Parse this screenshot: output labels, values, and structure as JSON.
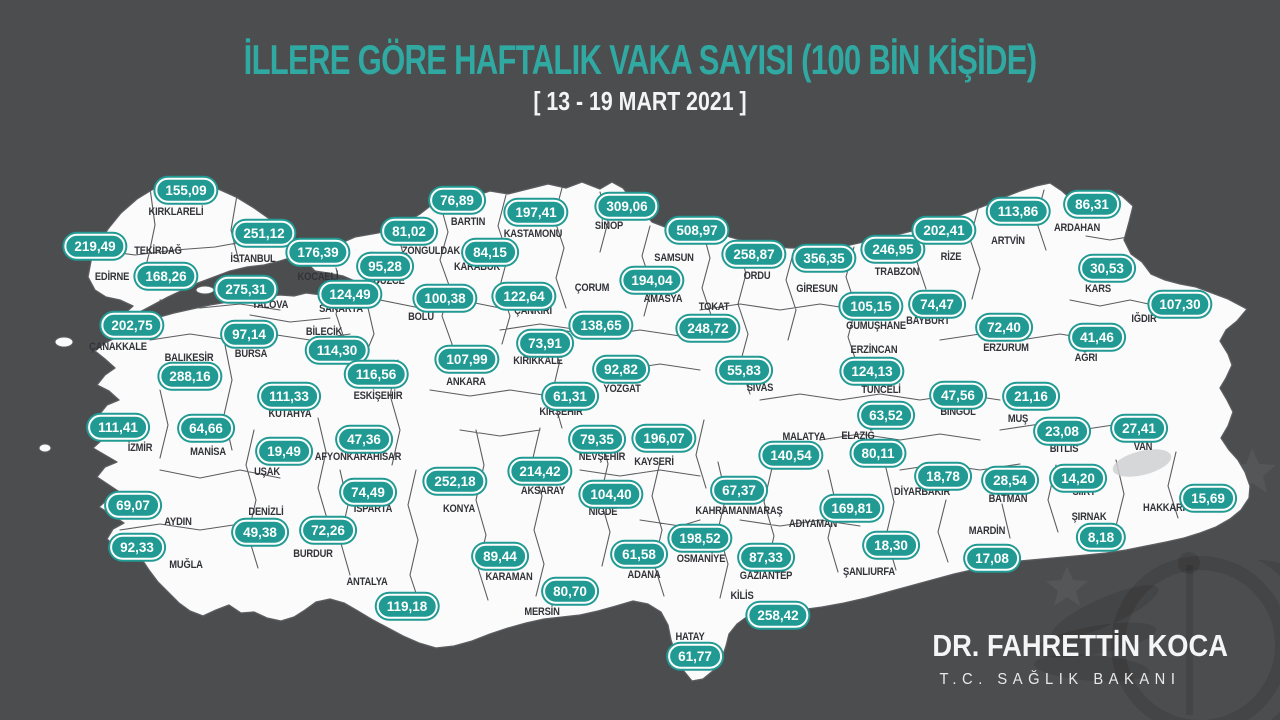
{
  "header": {
    "title": "İLLERE GÖRE HAFTALIK VAKA SAYISI (100 BİN KİŞİDE)",
    "subtitle": "[ 13 - 19 MART 2021 ]"
  },
  "signature": {
    "name": "DR. FAHRETTİN KOCA",
    "role": "T.C. SAĞLIK BAKANI"
  },
  "colors": {
    "background": "#4c4d4f",
    "land": "#fbfbfb",
    "map_border": "#5c5d60",
    "badge": "#219a94",
    "badge_text": "#ffffff",
    "label_color": "#323338",
    "title_color": "#2fa9a1",
    "subtitle_color": "#f4f4f4"
  },
  "chart_data": {
    "type": "map",
    "title": "İLLERE GÖRE HAFTALIK VAKA SAYISI (100 BİN KİŞİDE)",
    "period": "13 - 19 MART 2021",
    "unit": "haftalık vaka / 100 bin kişi",
    "region": "Türkiye (81 il)",
    "provinces": [
      {
        "name": "KIRKLARELİ",
        "value": "155,09",
        "num": 155.09,
        "badge": [
          186,
          190
        ],
        "label": [
          176,
          212
        ]
      },
      {
        "name": "EDİRNE",
        "value": "219,49",
        "num": 219.49,
        "badge": [
          95,
          246
        ],
        "label": [
          112,
          277
        ]
      },
      {
        "name": "TEKİRDAĞ",
        "value": "168,26",
        "num": 168.26,
        "badge": [
          166,
          276
        ],
        "label": [
          158,
          251
        ]
      },
      {
        "name": "İSTANBUL",
        "value": "251,12",
        "num": 251.12,
        "badge": [
          264,
          233
        ],
        "label": [
          253,
          259
        ]
      },
      {
        "name": "YALOVA",
        "value": "275,31",
        "num": 275.31,
        "badge": [
          246,
          289
        ],
        "label": [
          270,
          305
        ]
      },
      {
        "name": "KOCAELİ",
        "value": "176,39",
        "num": 176.39,
        "badge": [
          318,
          252
        ],
        "label": [
          318,
          277
        ]
      },
      {
        "name": "SAKARYA",
        "value": "124,49",
        "num": 124.49,
        "badge": [
          350,
          294
        ],
        "label": [
          341,
          309
        ]
      },
      {
        "name": "BURSA",
        "value": "97,14",
        "num": 97.14,
        "badge": [
          249,
          334
        ],
        "label": [
          251,
          354
        ]
      },
      {
        "name": "BİLECİK",
        "value": "114,30",
        "num": 114.3,
        "badge": [
          337,
          350
        ],
        "label": [
          324,
          332
        ]
      },
      {
        "name": "ÇANAKKALE",
        "value": "202,75",
        "num": 202.75,
        "badge": [
          132,
          325
        ],
        "label": [
          118,
          347
        ]
      },
      {
        "name": "BALIKESİR",
        "value": "288,16",
        "num": 288.16,
        "badge": [
          190,
          376
        ],
        "label": [
          189,
          358
        ]
      },
      {
        "name": "DÜZCE",
        "value": "95,28",
        "num": 95.28,
        "badge": [
          385,
          266
        ],
        "label": [
          389,
          281
        ]
      },
      {
        "name": "ZONGULDAK",
        "value": "81,02",
        "num": 81.02,
        "badge": [
          409,
          231
        ],
        "label": [
          431,
          251
        ]
      },
      {
        "name": "BARTIN",
        "value": "76,89",
        "num": 76.89,
        "badge": [
          457,
          200
        ],
        "label": [
          468,
          222
        ]
      },
      {
        "name": "KARABUK",
        "value": "84,15",
        "num": 84.15,
        "badge": [
          490,
          252
        ],
        "label": [
          477,
          267
        ]
      },
      {
        "name": "KASTAMONU",
        "value": "197,41",
        "num": 197.41,
        "badge": [
          536,
          212
        ],
        "label": [
          533,
          234
        ]
      },
      {
        "name": "SİNOP",
        "value": "309,06",
        "num": 309.06,
        "badge": [
          627,
          206
        ],
        "label": [
          609,
          226
        ]
      },
      {
        "name": "BOLU",
        "value": "100,38",
        "num": 100.38,
        "badge": [
          445,
          298
        ],
        "label": [
          421,
          317
        ]
      },
      {
        "name": "ÇANKIRI",
        "value": "122,64",
        "num": 122.64,
        "badge": [
          524,
          296
        ],
        "label": [
          533,
          311
        ]
      },
      {
        "name": "ÇORUM",
        "value": "138,65",
        "num": 138.65,
        "badge": [
          601,
          325
        ],
        "label": [
          592,
          288
        ]
      },
      {
        "name": "SAMSUN",
        "value": "508,97",
        "num": 508.97,
        "badge": [
          697,
          230
        ],
        "label": [
          674,
          258
        ]
      },
      {
        "name": "AMASYA",
        "value": "194,04",
        "num": 194.04,
        "badge": [
          652,
          280
        ],
        "label": [
          663,
          299
        ]
      },
      {
        "name": "TOKAT",
        "value": "248,72",
        "num": 248.72,
        "badge": [
          708,
          328
        ],
        "label": [
          714,
          307
        ]
      },
      {
        "name": "ORDU",
        "value": "258,87",
        "num": 258.87,
        "badge": [
          754,
          254
        ],
        "label": [
          757,
          276
        ]
      },
      {
        "name": "GİRESUN",
        "value": "356,35",
        "num": 356.35,
        "badge": [
          824,
          258
        ],
        "label": [
          817,
          289
        ]
      },
      {
        "name": "TRABZON",
        "value": "246,95",
        "num": 246.95,
        "badge": [
          893,
          249
        ],
        "label": [
          897,
          272
        ]
      },
      {
        "name": "RİZE",
        "value": "202,41",
        "num": 202.41,
        "badge": [
          944,
          230
        ],
        "label": [
          951,
          257
        ]
      },
      {
        "name": "ARTVİN",
        "value": "113,86",
        "num": 113.86,
        "badge": [
          1018,
          211
        ],
        "label": [
          1008,
          241
        ]
      },
      {
        "name": "ARDAHAN",
        "value": "86,31",
        "num": 86.31,
        "badge": [
          1092,
          204
        ],
        "label": [
          1077,
          228
        ]
      },
      {
        "name": "KARS",
        "value": "30,53",
        "num": 30.53,
        "badge": [
          1107,
          268
        ],
        "label": [
          1098,
          289
        ]
      },
      {
        "name": "IĞDIR",
        "value": "107,30",
        "num": 107.3,
        "badge": [
          1180,
          304
        ],
        "label": [
          1144,
          319
        ]
      },
      {
        "name": "AĞRI",
        "value": "41,46",
        "num": 41.46,
        "badge": [
          1097,
          337
        ],
        "label": [
          1086,
          358
        ]
      },
      {
        "name": "ERZURUM",
        "value": "72,40",
        "num": 72.4,
        "badge": [
          1004,
          327
        ],
        "label": [
          1006,
          348
        ]
      },
      {
        "name": "BAYBURT",
        "value": "74,47",
        "num": 74.47,
        "badge": [
          937,
          304
        ],
        "label": [
          928,
          321
        ]
      },
      {
        "name": "GÜMÜŞHANE",
        "value": "105,15",
        "num": 105.15,
        "badge": [
          871,
          306
        ],
        "label": [
          876,
          326
        ]
      },
      {
        "name": "ERZİNCAN",
        "value": "124,13",
        "num": 124.13,
        "badge": [
          872,
          371
        ],
        "label": [
          874,
          350
        ]
      },
      {
        "name": "TUNCELİ",
        "value": "63,52",
        "num": 63.52,
        "badge": [
          886,
          415
        ],
        "label": [
          881,
          390
        ]
      },
      {
        "name": "BİNGÖL",
        "value": "47,56",
        "num": 47.56,
        "badge": [
          958,
          395
        ],
        "label": [
          958,
          412
        ]
      },
      {
        "name": "MUŞ",
        "value": "21,16",
        "num": 21.16,
        "badge": [
          1031,
          396
        ],
        "label": [
          1018,
          419
        ]
      },
      {
        "name": "BİTLİS",
        "value": "23,08",
        "num": 23.08,
        "badge": [
          1062,
          431
        ],
        "label": [
          1064,
          449
        ]
      },
      {
        "name": "VAN",
        "value": "27,41",
        "num": 27.41,
        "badge": [
          1139,
          428
        ],
        "label": [
          1143,
          447
        ]
      },
      {
        "name": "SİVAS",
        "value": "55,83",
        "num": 55.83,
        "badge": [
          744,
          370
        ],
        "label": [
          760,
          388
        ]
      },
      {
        "name": "YOZGAT",
        "value": "92,82",
        "num": 92.82,
        "badge": [
          621,
          369
        ],
        "label": [
          622,
          389
        ]
      },
      {
        "name": "KIRIKKALE",
        "value": "73,91",
        "num": 73.91,
        "badge": [
          545,
          343
        ],
        "label": [
          538,
          361
        ]
      },
      {
        "name": "ANKARA",
        "value": "107,99",
        "num": 107.99,
        "badge": [
          467,
          359
        ],
        "label": [
          466,
          382
        ]
      },
      {
        "name": "ESKİŞEHİR",
        "value": "116,56",
        "num": 116.56,
        "badge": [
          376,
          374
        ],
        "label": [
          378,
          396
        ]
      },
      {
        "name": "KÜTAHYA",
        "value": "111,33",
        "num": 111.33,
        "badge": [
          289,
          396
        ],
        "label": [
          290,
          414
        ]
      },
      {
        "name": "MANİSA",
        "value": "64,66",
        "num": 64.66,
        "badge": [
          206,
          428
        ],
        "label": [
          208,
          452
        ]
      },
      {
        "name": "İZMİR",
        "value": "111,41",
        "num": 111.41,
        "badge": [
          118,
          427
        ],
        "label": [
          140,
          448
        ]
      },
      {
        "name": "UŞAK",
        "value": "19,49",
        "num": 19.49,
        "badge": [
          284,
          451
        ],
        "label": [
          267,
          472
        ]
      },
      {
        "name": "AFYONKARAHİSAR",
        "value": "47,36",
        "num": 47.36,
        "badge": [
          364,
          439
        ],
        "label": [
          358,
          457
        ]
      },
      {
        "name": "KIRŞEHİR",
        "value": "61,31",
        "num": 61.31,
        "badge": [
          570,
          396
        ],
        "label": [
          561,
          412
        ]
      },
      {
        "name": "NEVŞEHİR",
        "value": "79,35",
        "num": 79.35,
        "badge": [
          597,
          439
        ],
        "label": [
          602,
          457
        ]
      },
      {
        "name": "KAYSERİ",
        "value": "196,07",
        "num": 196.07,
        "badge": [
          664,
          438
        ],
        "label": [
          654,
          462
        ]
      },
      {
        "name": "AKSARAY",
        "value": "214,42",
        "num": 214.42,
        "badge": [
          540,
          471
        ],
        "label": [
          543,
          491
        ]
      },
      {
        "name": "NİĞDE",
        "value": "104,40",
        "num": 104.4,
        "badge": [
          611,
          494
        ],
        "label": [
          603,
          512
        ]
      },
      {
        "name": "KONYA",
        "value": "252,18",
        "num": 252.18,
        "badge": [
          455,
          481
        ],
        "label": [
          459,
          509
        ]
      },
      {
        "name": "AYDIN",
        "value": "69,07",
        "num": 69.07,
        "badge": [
          133,
          505
        ],
        "label": [
          178,
          522
        ]
      },
      {
        "name": "DENİZLİ",
        "value": "49,38",
        "num": 49.38,
        "badge": [
          260,
          532
        ],
        "label": [
          266,
          512
        ]
      },
      {
        "name": "MUĞLA",
        "value": "92,33",
        "num": 92.33,
        "badge": [
          137,
          547
        ],
        "label": [
          186,
          565
        ]
      },
      {
        "name": "BURDUR",
        "value": "72,26",
        "num": 72.26,
        "badge": [
          328,
          530
        ],
        "label": [
          313,
          554
        ]
      },
      {
        "name": "ISPARTA",
        "value": "74,49",
        "num": 74.49,
        "badge": [
          368,
          492
        ],
        "label": [
          373,
          509
        ]
      },
      {
        "name": "ANTALYA",
        "value": "119,18",
        "num": 119.18,
        "badge": [
          407,
          606
        ],
        "label": [
          367,
          582
        ]
      },
      {
        "name": "KARAMAN",
        "value": "89,44",
        "num": 89.44,
        "badge": [
          500,
          556
        ],
        "label": [
          509,
          577
        ]
      },
      {
        "name": "MERSİN",
        "value": "80,70",
        "num": 80.7,
        "badge": [
          570,
          591
        ],
        "label": [
          542,
          612
        ]
      },
      {
        "name": "ADANA",
        "value": "61,58",
        "num": 61.58,
        "badge": [
          639,
          554
        ],
        "label": [
          644,
          575
        ]
      },
      {
        "name": "OSMANİYE",
        "value": "198,52",
        "num": 198.52,
        "badge": [
          700,
          538
        ],
        "label": [
          701,
          559
        ]
      },
      {
        "name": "HATAY",
        "value": "61,77",
        "num": 61.77,
        "badge": [
          695,
          656
        ],
        "label": [
          690,
          637
        ]
      },
      {
        "name": "KİLİS",
        "value": "258,42",
        "num": 258.42,
        "badge": [
          778,
          615
        ],
        "label": [
          742,
          596
        ]
      },
      {
        "name": "GAZİANTEP",
        "value": "87,33",
        "num": 87.33,
        "badge": [
          766,
          557
        ],
        "label": [
          766,
          576
        ]
      },
      {
        "name": "KAHRAMANMARAŞ",
        "value": "67,37",
        "num": 67.37,
        "badge": [
          739,
          490
        ],
        "label": [
          739,
          511
        ]
      },
      {
        "name": "MALATYA",
        "value": "140,54",
        "num": 140.54,
        "badge": [
          791,
          455
        ],
        "label": [
          804,
          437
        ]
      },
      {
        "name": "ELAZIĞ",
        "value": "80,11",
        "num": 80.11,
        "badge": [
          878,
          453
        ],
        "label": [
          858,
          436
        ]
      },
      {
        "name": "ADIYAMAN",
        "value": "169,81",
        "num": 169.81,
        "badge": [
          852,
          508
        ],
        "label": [
          813,
          524
        ]
      },
      {
        "name": "ŞANLIURFA",
        "value": "18,30",
        "num": 18.3,
        "badge": [
          891,
          545
        ],
        "label": [
          869,
          572
        ]
      },
      {
        "name": "DİYARBAKIR",
        "value": "18,78",
        "num": 18.78,
        "badge": [
          943,
          476
        ],
        "label": [
          922,
          492
        ]
      },
      {
        "name": "MARDİN",
        "value": "17,08",
        "num": 17.08,
        "badge": [
          992,
          558
        ],
        "label": [
          987,
          531
        ]
      },
      {
        "name": "BATMAN",
        "value": "28,54",
        "num": 28.54,
        "badge": [
          1010,
          480
        ],
        "label": [
          1008,
          499
        ]
      },
      {
        "name": "SİİRT",
        "value": "14,20",
        "num": 14.2,
        "badge": [
          1078,
          478
        ],
        "label": [
          1084,
          492
        ]
      },
      {
        "name": "ŞIRNAK",
        "value": "8,18",
        "num": 8.18,
        "badge": [
          1101,
          537
        ],
        "label": [
          1089,
          517
        ]
      },
      {
        "name": "HAKKARİ",
        "value": "15,69",
        "num": 15.69,
        "badge": [
          1208,
          498
        ],
        "label": [
          1164,
          508
        ]
      }
    ]
  }
}
